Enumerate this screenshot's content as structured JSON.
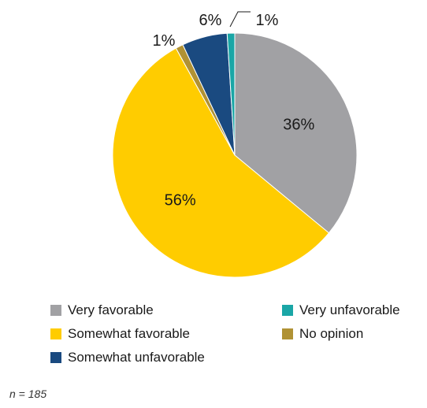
{
  "chart_data": {
    "type": "pie",
    "slices": [
      {
        "label": "Very favorable",
        "value": 36,
        "display": "36%",
        "color": "#a1a1a4"
      },
      {
        "label": "Somewhat favorable",
        "value": 56,
        "display": "56%",
        "color": "#ffcc00"
      },
      {
        "label": "No opinion",
        "value": 1,
        "display": "1%",
        "color": "#b09234"
      },
      {
        "label": "Somewhat unfavorable",
        "value": 6,
        "display": "6%",
        "color": "#1a4a80"
      },
      {
        "label": "Very unfavorable",
        "value": 1,
        "display": "1%",
        "color": "#1aa6a6"
      }
    ],
    "start": "12 o'clock",
    "direction": "clockwise",
    "legend_placement": "bottom"
  },
  "legend": [
    {
      "label": "Very favorable",
      "color": "#a1a1a4"
    },
    {
      "label": "Somewhat favorable",
      "color": "#ffcc00"
    },
    {
      "label": "Somewhat unfavorable",
      "color": "#1a4a80"
    },
    {
      "label": "Very unfavorable",
      "color": "#1aa6a6"
    },
    {
      "label": "No opinion",
      "color": "#b09234"
    }
  ],
  "note": "n = 185"
}
